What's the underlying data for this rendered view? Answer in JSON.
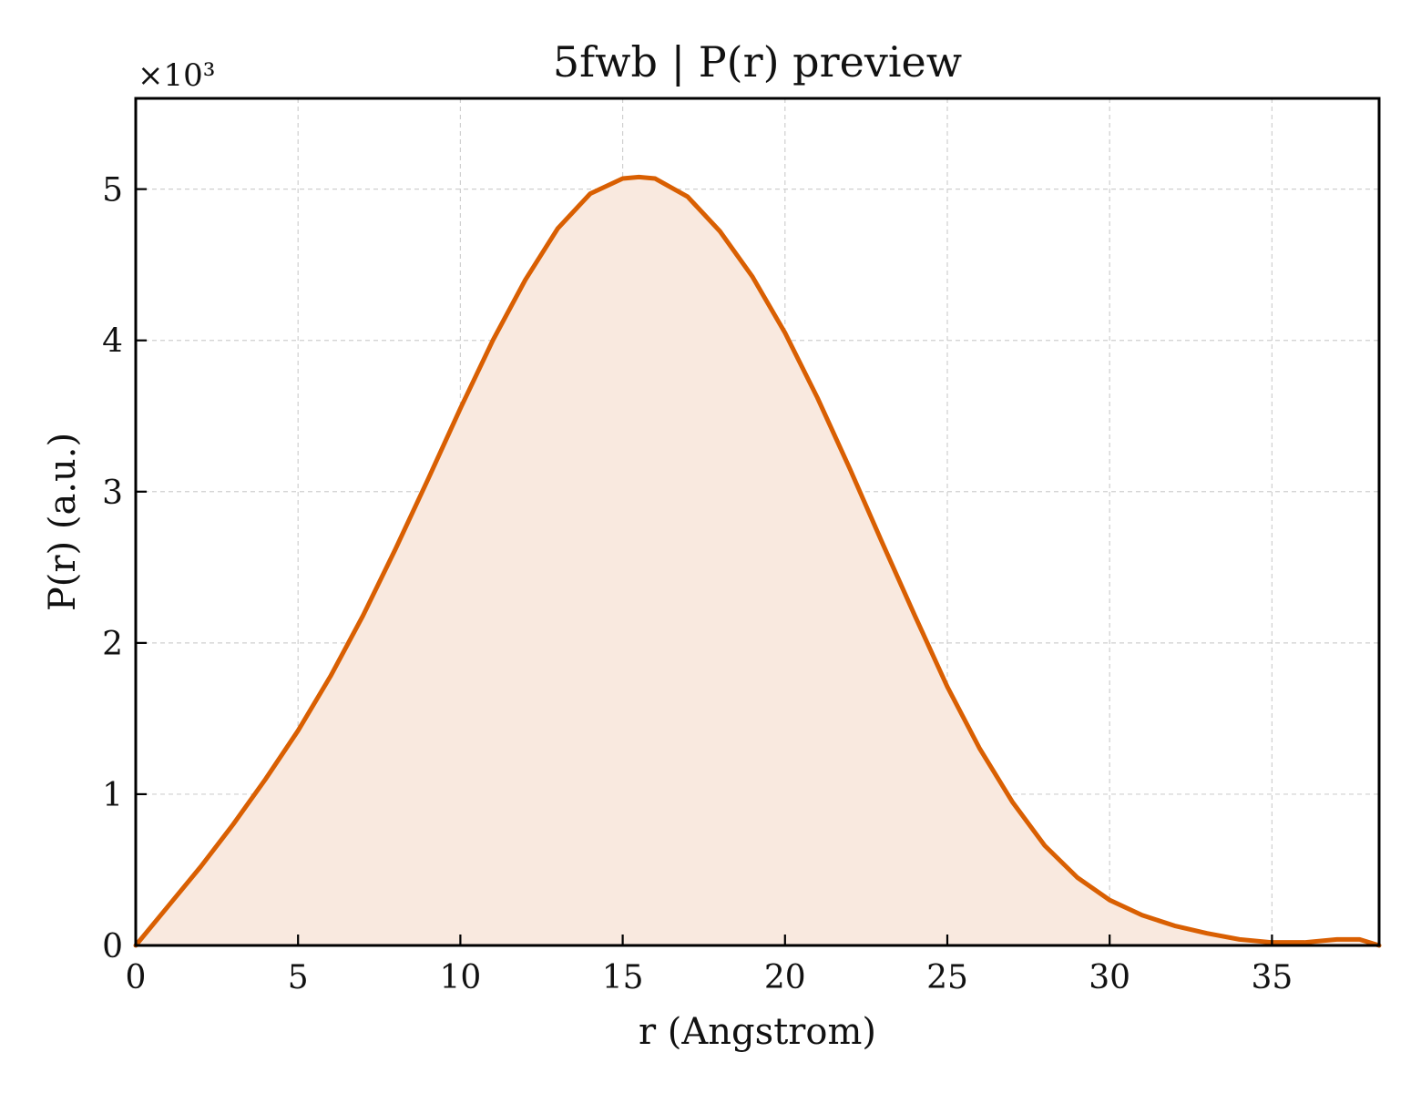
{
  "chart_data": {
    "type": "area",
    "title": "5fwb | P(r) preview",
    "xlabel": "r (Angstrom)",
    "ylabel": "P(r) (a.u.)",
    "y_multiplier_text": "×10³",
    "xlim": [
      0,
      38.3
    ],
    "ylim": [
      0,
      5.6
    ],
    "x_ticks": [
      0,
      5,
      10,
      15,
      20,
      25,
      30,
      35
    ],
    "x_tick_labels": [
      "0",
      "5",
      "10",
      "15",
      "20",
      "25",
      "30",
      "35"
    ],
    "y_ticks": [
      0,
      1,
      2,
      3,
      4,
      5
    ],
    "y_tick_labels": [
      "0",
      "1",
      "2",
      "3",
      "4",
      "5"
    ],
    "grid": true,
    "colors": {
      "line": "#d95f02",
      "fill": "#f9e9df"
    },
    "series": [
      {
        "x": [
          0,
          1,
          2,
          3,
          4,
          5,
          6,
          7,
          8,
          9,
          10,
          11,
          12,
          13,
          14,
          15,
          15.5,
          16,
          17,
          18,
          19,
          20,
          21,
          22,
          23,
          24,
          25,
          26,
          27,
          28,
          29,
          30,
          31,
          32,
          33,
          34,
          35,
          36,
          37,
          37.7,
          38.3
        ],
        "y": [
          0,
          0.26,
          0.52,
          0.8,
          1.1,
          1.42,
          1.78,
          2.18,
          2.62,
          3.08,
          3.55,
          4.0,
          4.4,
          4.74,
          4.97,
          5.07,
          5.08,
          5.07,
          4.95,
          4.72,
          4.42,
          4.05,
          3.62,
          3.15,
          2.66,
          2.18,
          1.71,
          1.3,
          0.95,
          0.66,
          0.45,
          0.3,
          0.2,
          0.13,
          0.08,
          0.04,
          0.02,
          0.02,
          0.04,
          0.04,
          0
        ]
      }
    ]
  }
}
